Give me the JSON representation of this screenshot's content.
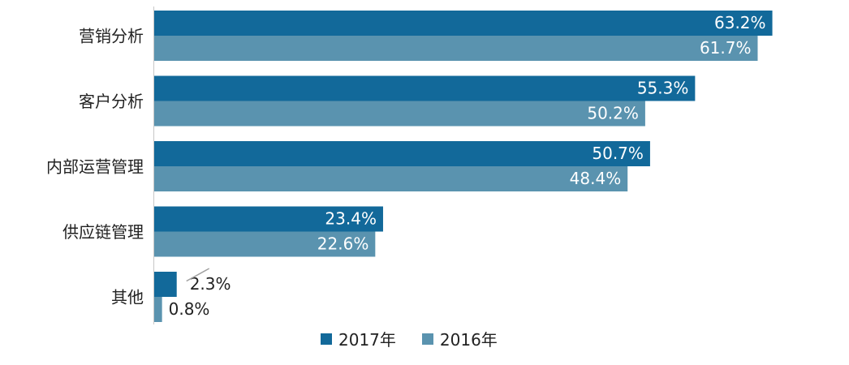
{
  "chart_data": {
    "type": "bar",
    "orientation": "horizontal",
    "categories": [
      "营销分析",
      "客户分析",
      "内部运营管理",
      "供应链管理",
      "其他"
    ],
    "series": [
      {
        "name": "2017年",
        "values": [
          63.2,
          55.3,
          50.7,
          23.4,
          2.3
        ],
        "color": "#12699a",
        "labels": [
          "63.2%",
          "55.3%",
          "50.7%",
          "23.4%",
          "2.3%"
        ]
      },
      {
        "name": "2016年",
        "values": [
          61.7,
          50.2,
          48.4,
          22.6,
          0.8
        ],
        "color": "#5a93af",
        "labels": [
          "61.7%",
          "50.2%",
          "48.4%",
          "22.6%",
          "0.8%"
        ]
      }
    ],
    "value_format": "percent",
    "xlim": [
      0,
      70
    ],
    "grid": false,
    "legend_position": "bottom"
  }
}
